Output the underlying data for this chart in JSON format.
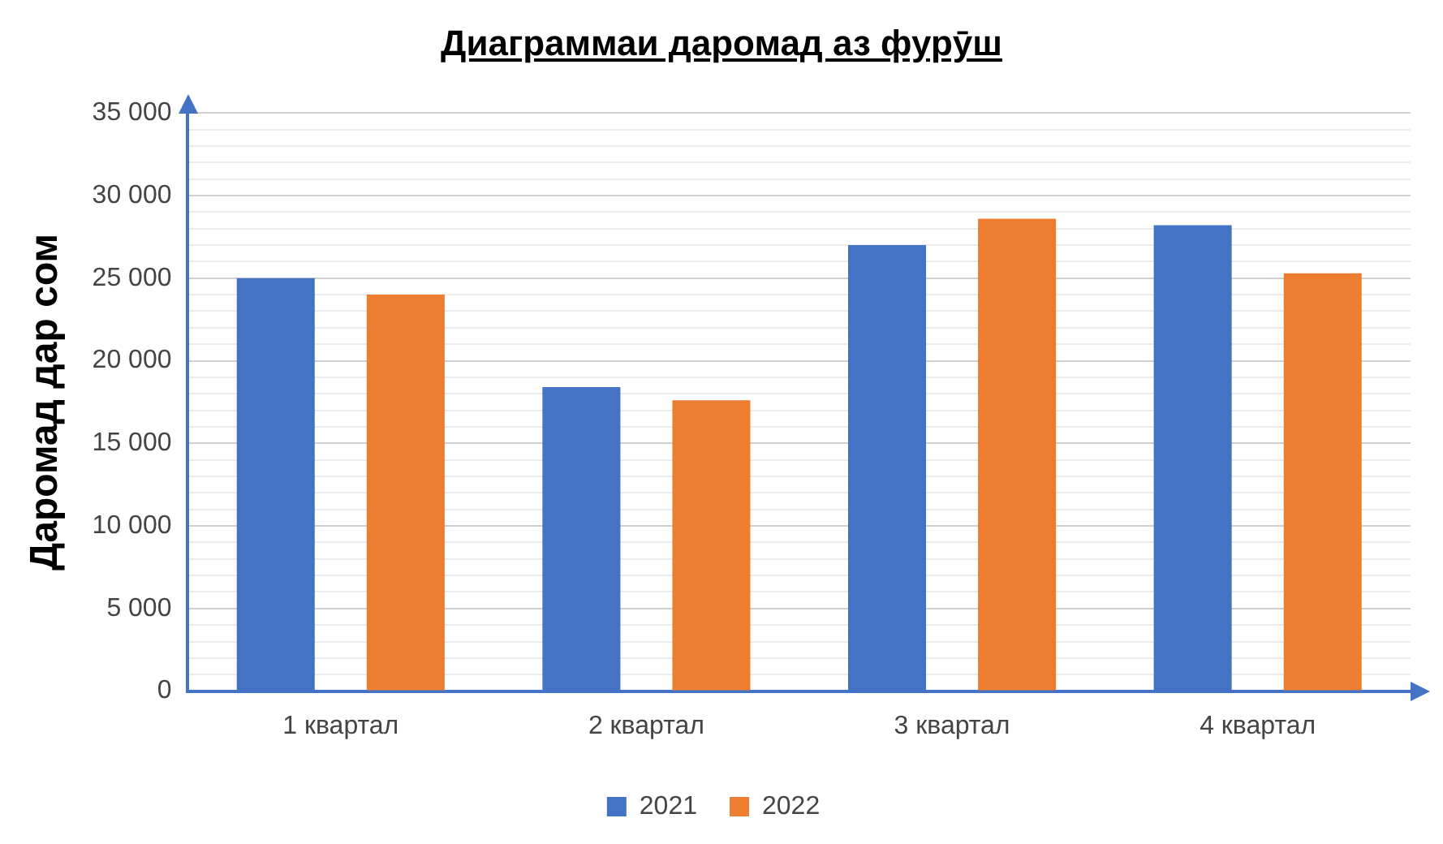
{
  "chart_data": {
    "type": "bar",
    "title": "Диаграммаи даромад аз фурӯш",
    "ylabel": "Даромад дар сом",
    "categories": [
      "1 квартал",
      "2 квартал",
      "3 квартал",
      "4 квартал"
    ],
    "series": [
      {
        "name": "2021",
        "color": "#4472c4",
        "values": [
          25000,
          18400,
          27000,
          28200
        ]
      },
      {
        "name": "2022",
        "color": "#ed7d31",
        "values": [
          24000,
          17600,
          28600,
          25300
        ]
      }
    ],
    "ylim": [
      0,
      35000
    ],
    "yticks": [
      {
        "value": 0,
        "label": "0"
      },
      {
        "value": 1000,
        "label": null
      },
      {
        "value": 2000,
        "label": null
      },
      {
        "value": 3000,
        "label": null
      },
      {
        "value": 4000,
        "label": null
      },
      {
        "value": 5000,
        "label": "5 000"
      },
      {
        "value": 6000,
        "label": null
      },
      {
        "value": 7000,
        "label": null
      },
      {
        "value": 8000,
        "label": null
      },
      {
        "value": 9000,
        "label": null
      },
      {
        "value": 10000,
        "label": "10 000"
      },
      {
        "value": 11000,
        "label": null
      },
      {
        "value": 12000,
        "label": null
      },
      {
        "value": 13000,
        "label": null
      },
      {
        "value": 14000,
        "label": null
      },
      {
        "value": 15000,
        "label": "15 000"
      },
      {
        "value": 16000,
        "label": null
      },
      {
        "value": 17000,
        "label": null
      },
      {
        "value": 18000,
        "label": null
      },
      {
        "value": 19000,
        "label": null
      },
      {
        "value": 20000,
        "label": "20 000"
      },
      {
        "value": 21000,
        "label": null
      },
      {
        "value": 22000,
        "label": null
      },
      {
        "value": 23000,
        "label": null
      },
      {
        "value": 24000,
        "label": null
      },
      {
        "value": 25000,
        "label": "25 000"
      },
      {
        "value": 26000,
        "label": null
      },
      {
        "value": 27000,
        "label": null
      },
      {
        "value": 28000,
        "label": null
      },
      {
        "value": 29000,
        "label": null
      },
      {
        "value": 30000,
        "label": "30 000"
      },
      {
        "value": 31000,
        "label": null
      },
      {
        "value": 32000,
        "label": null
      },
      {
        "value": 33000,
        "label": null
      },
      {
        "value": 34000,
        "label": null
      },
      {
        "value": 35000,
        "label": "35 000"
      }
    ],
    "grid": "y",
    "legend": "bottom"
  }
}
